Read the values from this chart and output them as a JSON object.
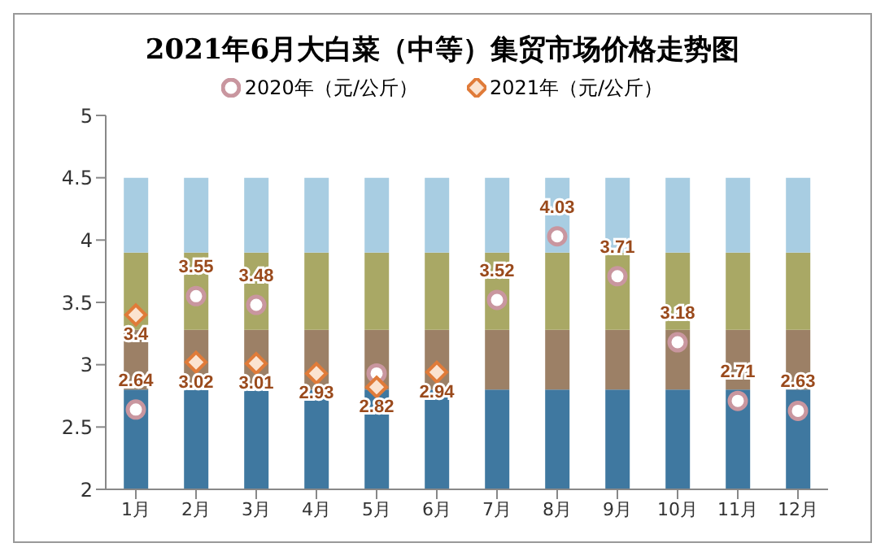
{
  "chart_data": {
    "type": "bar",
    "title": "2021年6月大白菜（中等）集贸市场价格走势图",
    "categories": [
      "1月",
      "2月",
      "3月",
      "4月",
      "5月",
      "6月",
      "7月",
      "8月",
      "9月",
      "10月",
      "11月",
      "12月"
    ],
    "series": [
      {
        "color": "#3f78a0",
        "base": [
          2,
          2,
          2,
          2,
          2,
          2,
          2,
          2,
          2,
          2,
          2,
          2
        ],
        "values": [
          0.8,
          0.8,
          0.8,
          0.8,
          0.8,
          0.8,
          0.8,
          0.8,
          0.8,
          0.8,
          0.8,
          0.8
        ]
      },
      {
        "color": "#9c8066",
        "base": [
          2.8,
          2.8,
          2.8,
          2.8,
          2.8,
          2.8,
          2.8,
          2.8,
          2.8,
          2.8,
          2.8,
          2.8
        ],
        "values": [
          0.48,
          0.48,
          0.48,
          0.48,
          0.48,
          0.48,
          0.48,
          0.48,
          0.48,
          0.48,
          0.48,
          0.48
        ]
      },
      {
        "color": "#a9a865",
        "base": [
          3.28,
          3.28,
          3.28,
          3.28,
          3.28,
          3.28,
          3.28,
          3.28,
          3.28,
          3.28,
          3.28,
          3.28
        ],
        "values": [
          0.62,
          0.62,
          0.62,
          0.62,
          0.62,
          0.62,
          0.62,
          0.62,
          0.62,
          0.62,
          0.62,
          0.62
        ]
      },
      {
        "color": "#a8cde2",
        "base": [
          3.9,
          3.9,
          3.9,
          3.9,
          3.9,
          3.9,
          3.9,
          3.9,
          3.9,
          3.9,
          3.9,
          3.9
        ],
        "values": [
          0.6,
          0.6,
          0.6,
          0.6,
          0.6,
          0.6,
          0.6,
          0.6,
          0.6,
          0.6,
          0.6,
          0.6
        ]
      },
      {
        "type": "scatter",
        "name": "2020年（元/公斤）",
        "color": "#c9969f",
        "marker": "circle",
        "values": [
          2.64,
          3.55,
          3.48,
          null,
          2.93,
          null,
          3.52,
          4.03,
          3.71,
          3.18,
          2.71,
          2.63
        ],
        "value_labels": [
          "2.64",
          "3.55",
          "3.48",
          null,
          null,
          null,
          "3.52",
          "4.03",
          "3.71",
          "3.18",
          "2.71",
          "2.63"
        ]
      },
      {
        "type": "scatter",
        "name": "2021年（元/公斤）",
        "color": "#e07b39",
        "marker": "diamond",
        "values": [
          3.4,
          3.02,
          3.01,
          2.93,
          2.82,
          2.94,
          null,
          null,
          null,
          null,
          null,
          null
        ],
        "value_labels": [
          "3.4",
          "3.02",
          "3.01",
          "2.93",
          "2.82",
          "2.94",
          null,
          null,
          null,
          null,
          null,
          null
        ]
      }
    ],
    "ylim": [
      2,
      5
    ],
    "yticks": [
      2,
      2.5,
      3,
      3.5,
      4,
      4.5,
      5
    ],
    "legend": "top"
  }
}
